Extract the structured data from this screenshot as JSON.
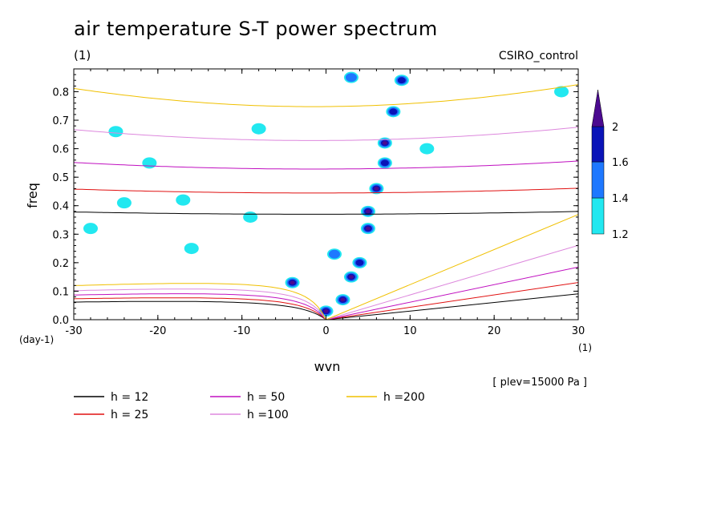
{
  "chart_data": {
    "type": "heatmap",
    "title": "air temperature S-T power spectrum",
    "subtitle": "(1)",
    "model_label": "CSIRO_control",
    "level_note": "[ plev=15000 Pa ]",
    "xlabel": "wvn",
    "ylabel": "freq",
    "x_unit": "(1)",
    "y_unit": "(day-1)",
    "xlim": [
      -30,
      30
    ],
    "ylim": [
      0,
      0.88
    ],
    "x_ticks": [
      -30,
      -20,
      -10,
      0,
      10,
      20,
      30
    ],
    "x_tick_labels": [
      "-30",
      "-20",
      "-10",
      "0",
      "10",
      "20",
      "30"
    ],
    "y_ticks": [
      0,
      0.1,
      0.2,
      0.3,
      0.4,
      0.5,
      0.6,
      0.7,
      0.8
    ],
    "y_tick_labels": [
      "0.0",
      "0.1",
      "0.2",
      "0.3",
      "0.4",
      "0.5",
      "0.6",
      "0.7",
      "0.8"
    ],
    "colorbar": {
      "levels": [
        1.2,
        1.4,
        1.6,
        2
      ],
      "labels": [
        "1.2",
        "1.4",
        "1.6",
        "2"
      ],
      "colors": [
        "#22e8f0",
        "#1e78ff",
        "#0a14b8",
        "#4b0a90"
      ]
    },
    "dispersion_curves": [
      {
        "label": "h = 12",
        "h": 12,
        "color": "#000000"
      },
      {
        "label": "h = 25",
        "h": 25,
        "color": "#e01010"
      },
      {
        "label": "h = 50",
        "h": 50,
        "color": "#c010c0"
      },
      {
        "label": "h =100",
        "h": 100,
        "color": "#dd88dd"
      },
      {
        "label": "h =200",
        "h": 200,
        "color": "#f0c000"
      }
    ],
    "features": [
      {
        "wvn": 0,
        "freq": 0.03,
        "level": 2
      },
      {
        "wvn": 2,
        "freq": 0.07,
        "level": 2
      },
      {
        "wvn": 3,
        "freq": 0.15,
        "level": 2
      },
      {
        "wvn": 4,
        "freq": 0.2,
        "level": 1.6
      },
      {
        "wvn": 5,
        "freq": 0.32,
        "level": 2
      },
      {
        "wvn": 5,
        "freq": 0.38,
        "level": 2
      },
      {
        "wvn": 6,
        "freq": 0.46,
        "level": 2
      },
      {
        "wvn": 7,
        "freq": 0.55,
        "level": 1.6
      },
      {
        "wvn": 7,
        "freq": 0.62,
        "level": 2
      },
      {
        "wvn": 8,
        "freq": 0.73,
        "level": 1.6
      },
      {
        "wvn": 9,
        "freq": 0.84,
        "level": 1.6
      },
      {
        "wvn": 1,
        "freq": 0.23,
        "level": 1.4
      },
      {
        "wvn": -4,
        "freq": 0.13,
        "level": 2
      },
      {
        "wvn": 3,
        "freq": 0.85,
        "level": 1.4
      },
      {
        "wvn": -25,
        "freq": 0.66,
        "level": 1.2
      },
      {
        "wvn": -21,
        "freq": 0.55,
        "level": 1.2
      },
      {
        "wvn": -17,
        "freq": 0.42,
        "level": 1.2
      },
      {
        "wvn": -24,
        "freq": 0.41,
        "level": 1.2
      },
      {
        "wvn": -16,
        "freq": 0.25,
        "level": 1.2
      },
      {
        "wvn": -8,
        "freq": 0.67,
        "level": 1.2
      },
      {
        "wvn": -9,
        "freq": 0.36,
        "level": 1.2
      },
      {
        "wvn": 12,
        "freq": 0.6,
        "level": 1.2
      },
      {
        "wvn": 28,
        "freq": 0.8,
        "level": 1.2
      },
      {
        "wvn": -28,
        "freq": 0.32,
        "level": 1.2
      }
    ]
  }
}
